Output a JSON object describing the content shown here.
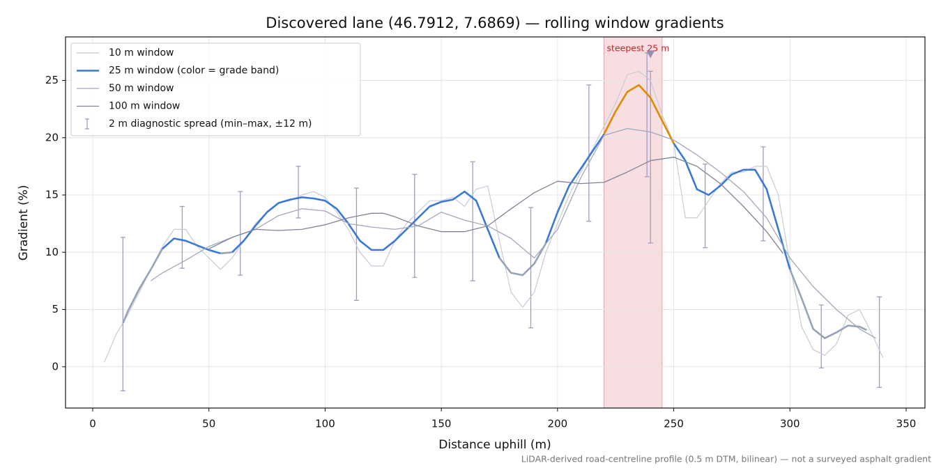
{
  "chart_data": {
    "type": "line",
    "title": "Discovered lane (46.7912, 7.6869) — rolling window gradients",
    "x_label": "Distance uphill (m)",
    "y_label": "Gradient (%)",
    "footnote": "LiDAR-derived road-centreline profile (0.5 m DTM, bilinear) — not a surveyed asphalt gradient",
    "xlim": [
      -11.7,
      358.1
    ],
    "ylim": [
      -3.6,
      28.8
    ],
    "xticks": [
      0,
      50,
      100,
      150,
      200,
      250,
      300,
      350
    ],
    "yticks": [
      0,
      5,
      10,
      15,
      20,
      25
    ],
    "grid": true,
    "legend": "upper-left",
    "series": [
      {
        "name": "10 m window",
        "color": "#c6cbd6",
        "width": 1.2,
        "x": [
          5,
          10,
          15,
          20,
          25,
          30,
          35,
          40,
          45,
          50,
          55,
          60,
          65,
          70,
          75,
          80,
          85,
          90,
          95,
          100,
          105,
          110,
          115,
          120,
          125,
          130,
          135,
          140,
          145,
          150,
          155,
          160,
          165,
          170,
          175,
          180,
          185,
          190,
          195,
          200,
          205,
          210,
          215,
          220,
          225,
          230,
          235,
          240,
          245,
          250,
          255,
          260,
          265,
          270,
          275,
          280,
          285,
          290,
          295,
          300,
          305,
          310,
          315,
          320,
          325,
          330,
          335,
          340
        ],
        "values": [
          0.4,
          2.8,
          4.5,
          6.5,
          8.5,
          10.5,
          12,
          12,
          10.5,
          9.5,
          8.5,
          9.5,
          11,
          12.5,
          13.5,
          14.3,
          14.5,
          15,
          15.3,
          14.8,
          13.5,
          12,
          10,
          8.8,
          8.8,
          11,
          12.5,
          13.5,
          14.5,
          14.5,
          14.8,
          14,
          15.5,
          15.8,
          11,
          6.5,
          5.2,
          6.5,
          10,
          12.5,
          15,
          17,
          19,
          21,
          23,
          25.5,
          25.8,
          25,
          22,
          19.5,
          13,
          13,
          14.5,
          16,
          17,
          17,
          17.5,
          17.5,
          15,
          9,
          3.5,
          1.5,
          1,
          2,
          4.5,
          5,
          3,
          0.8
        ]
      },
      {
        "name": "25 m window (color = grade band)",
        "color": "#3a78d8",
        "width": 2.6,
        "band_thresholds": [
          10,
          20
        ],
        "band_colors": [
          "#97a3b6",
          "#3a78d8",
          "#e08a00"
        ],
        "x": [
          13,
          15,
          20,
          25,
          30,
          35,
          40,
          45,
          50,
          55,
          60,
          65,
          70,
          75,
          80,
          85,
          90,
          95,
          100,
          105,
          110,
          115,
          120,
          125,
          130,
          135,
          140,
          145,
          150,
          155,
          160,
          165,
          170,
          175,
          180,
          185,
          190,
          195,
          200,
          205,
          210,
          215,
          220,
          225,
          230,
          235,
          240,
          245,
          250,
          255,
          260,
          265,
          270,
          275,
          280,
          285,
          290,
          295,
          300,
          305,
          310,
          315,
          320,
          325,
          330,
          333
        ],
        "values": [
          3.8,
          4.8,
          6.8,
          8.5,
          10.3,
          11.2,
          11,
          10.6,
          10.2,
          9.9,
          10,
          11,
          12.3,
          13.5,
          14.3,
          14.6,
          14.8,
          14.7,
          14.5,
          13.8,
          12.5,
          11,
          10.2,
          10.2,
          11,
          12,
          13,
          14,
          14.4,
          14.6,
          15.3,
          14.5,
          12,
          9.5,
          8.2,
          8,
          9,
          10.8,
          13.5,
          15.8,
          17.3,
          18.8,
          20.3,
          22.3,
          24,
          24.6,
          23.5,
          21.5,
          19.5,
          18,
          15.5,
          15,
          15.8,
          16.8,
          17.2,
          17.2,
          15.5,
          12,
          8.5,
          6,
          3.3,
          2.5,
          3,
          3.6,
          3.5,
          3.2
        ]
      },
      {
        "name": "50 m window",
        "color": "#a0a8ba",
        "width": 1.3,
        "x": [
          25,
          30,
          40,
          50,
          60,
          70,
          80,
          90,
          100,
          110,
          120,
          130,
          140,
          150,
          160,
          170,
          180,
          190,
          200,
          210,
          220,
          230,
          240,
          250,
          260,
          270,
          280,
          290,
          300,
          310,
          320,
          330,
          337
        ],
        "values": [
          7.5,
          8.2,
          9.3,
          10.5,
          11.3,
          12,
          13.2,
          13.8,
          13.6,
          12.5,
          12.2,
          12,
          12.3,
          13.5,
          12.8,
          12.3,
          11.2,
          9.5,
          12,
          16.5,
          20.2,
          20.8,
          20.5,
          19.8,
          18.5,
          17,
          15.3,
          13,
          9.5,
          7,
          5,
          3.3,
          2.5
        ]
      },
      {
        "name": "100 m window",
        "color": "#7d8496",
        "width": 1.3,
        "x": [
          50,
          60,
          70,
          80,
          90,
          100,
          110,
          120,
          125,
          130,
          140,
          150,
          160,
          170,
          180,
          190,
          200,
          210,
          220,
          230,
          240,
          250,
          260,
          270,
          280,
          290,
          297
        ],
        "values": [
          10.3,
          11.3,
          12,
          11.9,
          12,
          12.4,
          13,
          13.4,
          13.4,
          13.1,
          12.3,
          11.8,
          11.8,
          12.3,
          13.8,
          15.2,
          16.2,
          16,
          16.1,
          17,
          18,
          18.3,
          17.5,
          16,
          14,
          11.8,
          9.9
        ]
      }
    ],
    "errorbars": {
      "name": "2 m diagnostic spread (min–max, ±12 m)",
      "color": "#a09cc0",
      "x": [
        13,
        38.5,
        63.5,
        88.5,
        113.5,
        138.5,
        163.5,
        188.5,
        213.5,
        238.5,
        240,
        263.5,
        288.5,
        313.5,
        338.5
      ],
      "lower": [
        -2.1,
        8.6,
        8,
        13,
        5.8,
        7.8,
        7.5,
        3.4,
        12.7,
        16.6,
        10.8,
        10.4,
        11,
        -0.1,
        -1.8
      ],
      "upper": [
        11.3,
        14,
        15.3,
        17.5,
        15.6,
        16.8,
        17.9,
        13.9,
        24.6,
        27.4,
        25.8,
        17.7,
        19.2,
        5.4,
        6.1
      ]
    },
    "highlight": {
      "x": [
        220,
        245
      ],
      "label": "steepest 25 m",
      "marker": [
        240,
        27.3
      ],
      "color": "#e8a0aa",
      "text_color": "#c8202c"
    }
  }
}
